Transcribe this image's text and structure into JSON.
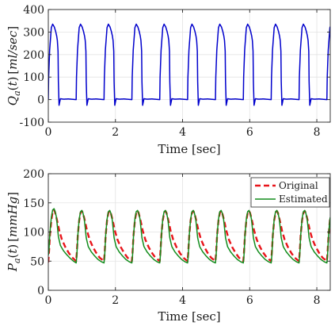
{
  "chart_data": [
    {
      "type": "line",
      "title": "",
      "xlabel": "Time [sec]",
      "ylabel": "Q_a(t) [ml/sec]",
      "xlim": [
        0,
        8.4
      ],
      "ylim": [
        -100,
        400
      ],
      "xticks": [
        0,
        2,
        4,
        6,
        8
      ],
      "yticks": [
        -100,
        0,
        100,
        200,
        300,
        400
      ],
      "grid": true,
      "legend": null,
      "colors": {
        "flow": "#0000cc"
      },
      "cycle_period": 0.83,
      "series": [
        {
          "cycle_phase": [
            0,
            0.01,
            0.04,
            0.09,
            0.13,
            0.18,
            0.22,
            0.25,
            0.27,
            0.29,
            0.3,
            0.32,
            0.36,
            0.45,
            0.6,
            0.83
          ],
          "cycle_values": [
            0,
            100,
            220,
            320,
            335,
            322,
            302,
            282,
            262,
            215,
            80,
            -25,
            4,
            2,
            3,
            0
          ],
          "start": 0,
          "end": 8.4
        }
      ]
    },
    {
      "type": "line",
      "title": "",
      "xlabel": "Time [sec]",
      "ylabel": "P_a(t) [mmHg]",
      "xlim": [
        0,
        8.4
      ],
      "ylim": [
        0,
        200
      ],
      "xticks": [
        0,
        2,
        4,
        6,
        8
      ],
      "yticks": [
        0,
        50,
        100,
        150,
        200
      ],
      "grid": true,
      "legend": "top-right",
      "colors": {
        "original": "#e8141a",
        "estimated": "#128c1c"
      },
      "cycle_period": 0.83,
      "series": [
        {
          "name": "Original",
          "style": "dashed",
          "first_cycle_phase": [
            0,
            0.02,
            0.05,
            0.09,
            0.13,
            0.17,
            0.2,
            0.24,
            0.28,
            0.32,
            0.4,
            0.5,
            0.6,
            0.7,
            0.83
          ],
          "first_cycle_values": [
            48,
            65,
            95,
            120,
            135,
            138,
            134,
            125,
            115,
            104,
            88,
            75,
            65,
            57,
            50
          ],
          "cycle_phase": [
            0,
            0.02,
            0.05,
            0.09,
            0.13,
            0.17,
            0.2,
            0.24,
            0.28,
            0.32,
            0.4,
            0.5,
            0.6,
            0.7,
            0.83
          ],
          "cycle_values": [
            50,
            65,
            95,
            120,
            133,
            136,
            133,
            124,
            114,
            103,
            87,
            74,
            64,
            56,
            50
          ],
          "start": 0,
          "end": 8.4
        },
        {
          "name": "Estimated",
          "style": "solid",
          "first_cycle_phase": [
            0,
            0.02,
            0.05,
            0.09,
            0.13,
            0.17,
            0.2,
            0.24,
            0.27,
            0.3,
            0.36,
            0.45,
            0.55,
            0.65,
            0.75,
            0.83
          ],
          "first_cycle_values": [
            60,
            70,
            100,
            125,
            138,
            140,
            136,
            126,
            110,
            92,
            77,
            68,
            61,
            55,
            50,
            47
          ],
          "cycle_phase": [
            0,
            0.02,
            0.05,
            0.09,
            0.13,
            0.17,
            0.2,
            0.24,
            0.27,
            0.3,
            0.36,
            0.45,
            0.55,
            0.65,
            0.75,
            0.83
          ],
          "cycle_values": [
            47,
            60,
            95,
            122,
            135,
            137,
            133,
            123,
            107,
            90,
            75,
            66,
            59,
            53,
            49,
            47
          ],
          "start": 0,
          "end": 8.4
        }
      ]
    }
  ]
}
